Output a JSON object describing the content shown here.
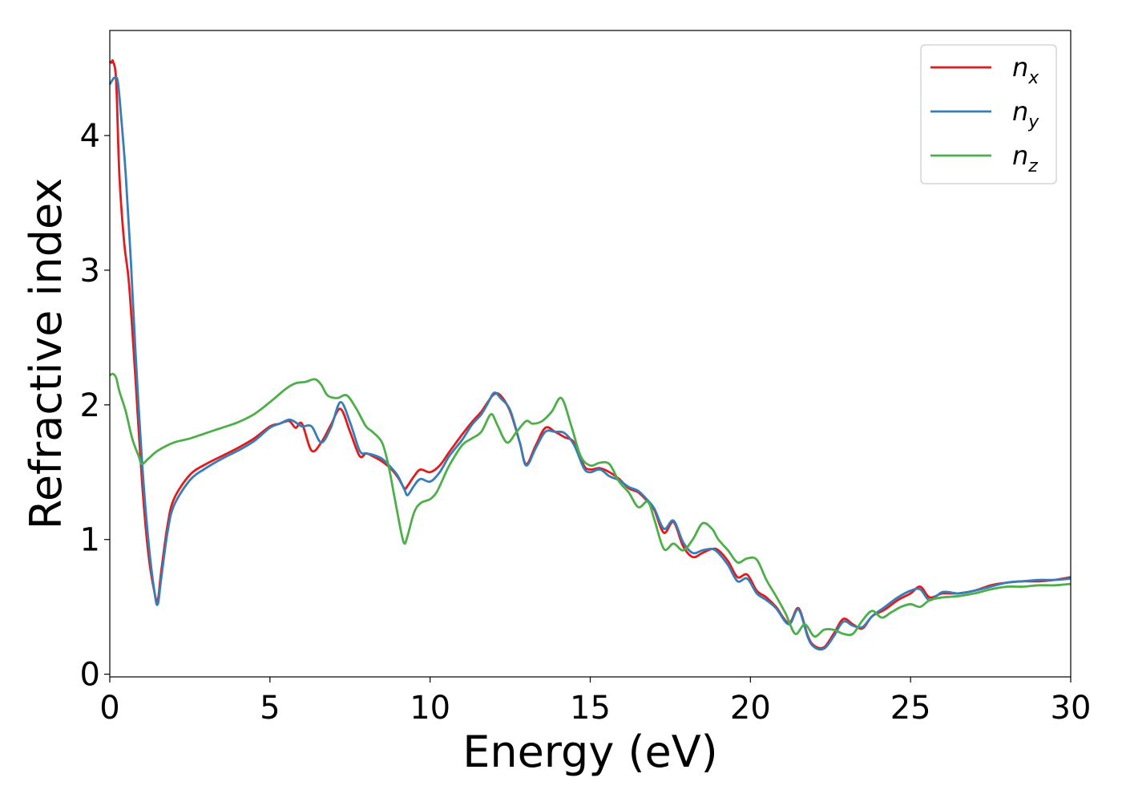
{
  "chart_data": {
    "type": "line",
    "xlabel": "Energy (eV)",
    "ylabel": "Refractive index",
    "xlim": [
      0,
      30
    ],
    "ylim": [
      -0.02,
      4.78
    ],
    "xticks": [
      {
        "v": 0,
        "label": "0"
      },
      {
        "v": 5,
        "label": "5"
      },
      {
        "v": 10,
        "label": "10"
      },
      {
        "v": 15,
        "label": "15"
      },
      {
        "v": 20,
        "label": "20"
      },
      {
        "v": 25,
        "label": "25"
      },
      {
        "v": 30,
        "label": "30"
      }
    ],
    "yticks": [
      {
        "v": 0,
        "label": "0"
      },
      {
        "v": 1,
        "label": "1"
      },
      {
        "v": 2,
        "label": "2"
      },
      {
        "v": 3,
        "label": "3"
      },
      {
        "v": 4,
        "label": "4"
      }
    ],
    "grid": false,
    "legend_position": "top-right",
    "series": [
      {
        "name": "n_x",
        "base": "n",
        "sub": "x",
        "color": "#e41a1c",
        "x": [
          0,
          0.05,
          0.1,
          0.2,
          0.3,
          0.45,
          0.6,
          0.8,
          1.0,
          1.2,
          1.4,
          1.5,
          1.6,
          1.8,
          2.0,
          2.5,
          3.0,
          3.5,
          4.0,
          4.5,
          5.0,
          5.3,
          5.6,
          5.8,
          6.0,
          6.3,
          6.6,
          6.9,
          7.2,
          7.5,
          7.8,
          8.0,
          8.2,
          8.5,
          8.8,
          9.0,
          9.2,
          9.3,
          9.5,
          9.7,
          10.0,
          10.3,
          10.6,
          11.0,
          11.3,
          11.6,
          11.8,
          12.0,
          12.2,
          12.5,
          12.8,
          13.0,
          13.3,
          13.6,
          13.9,
          14.2,
          14.5,
          14.8,
          15.0,
          15.3,
          15.6,
          15.9,
          16.2,
          16.5,
          16.8,
          17.0,
          17.3,
          17.6,
          17.9,
          18.2,
          18.5,
          18.8,
          19.0,
          19.3,
          19.6,
          19.9,
          20.2,
          20.5,
          20.8,
          21.2,
          21.5,
          21.8,
          22.0,
          22.3,
          22.6,
          22.9,
          23.2,
          23.5,
          23.8,
          24.2,
          24.6,
          25.0,
          25.3,
          25.6,
          26.0,
          26.5,
          27.0,
          27.5,
          28.0,
          28.5,
          29.0,
          29.5,
          30.0
        ],
        "y": [
          4.55,
          4.54,
          4.55,
          4.4,
          3.7,
          3.2,
          2.9,
          2.2,
          1.45,
          0.9,
          0.6,
          0.55,
          0.75,
          1.1,
          1.3,
          1.48,
          1.56,
          1.62,
          1.68,
          1.75,
          1.84,
          1.86,
          1.88,
          1.83,
          1.86,
          1.66,
          1.72,
          1.85,
          1.97,
          1.8,
          1.62,
          1.64,
          1.62,
          1.58,
          1.52,
          1.46,
          1.38,
          1.4,
          1.47,
          1.52,
          1.5,
          1.55,
          1.65,
          1.78,
          1.87,
          1.95,
          2.02,
          2.08,
          2.07,
          1.95,
          1.72,
          1.56,
          1.7,
          1.83,
          1.8,
          1.76,
          1.72,
          1.55,
          1.52,
          1.53,
          1.5,
          1.45,
          1.38,
          1.35,
          1.28,
          1.22,
          1.05,
          1.13,
          0.95,
          0.87,
          0.9,
          0.93,
          0.92,
          0.84,
          0.72,
          0.74,
          0.62,
          0.57,
          0.5,
          0.38,
          0.49,
          0.28,
          0.21,
          0.2,
          0.3,
          0.41,
          0.37,
          0.34,
          0.43,
          0.48,
          0.55,
          0.6,
          0.65,
          0.57,
          0.6,
          0.6,
          0.62,
          0.66,
          0.68,
          0.69,
          0.69,
          0.7,
          0.72
        ]
      },
      {
        "name": "n_y",
        "base": "n",
        "sub": "y",
        "color": "#377eb8",
        "x": [
          0,
          0.05,
          0.15,
          0.25,
          0.35,
          0.5,
          0.65,
          0.8,
          1.0,
          1.2,
          1.4,
          1.5,
          1.6,
          1.8,
          2.0,
          2.5,
          3.0,
          3.5,
          4.0,
          4.5,
          5.0,
          5.3,
          5.6,
          5.8,
          6.0,
          6.3,
          6.6,
          6.9,
          7.2,
          7.5,
          7.8,
          8.0,
          8.2,
          8.5,
          8.8,
          9.0,
          9.2,
          9.3,
          9.5,
          9.7,
          10.0,
          10.3,
          10.6,
          11.0,
          11.3,
          11.6,
          11.8,
          12.0,
          12.2,
          12.5,
          12.8,
          13.0,
          13.3,
          13.6,
          13.9,
          14.2,
          14.5,
          14.8,
          15.0,
          15.3,
          15.6,
          15.9,
          16.2,
          16.5,
          16.8,
          17.0,
          17.3,
          17.6,
          17.9,
          18.2,
          18.5,
          18.8,
          19.0,
          19.3,
          19.6,
          19.9,
          20.2,
          20.5,
          20.8,
          21.2,
          21.5,
          21.8,
          22.0,
          22.3,
          22.6,
          22.9,
          23.2,
          23.5,
          23.8,
          24.2,
          24.6,
          25.0,
          25.3,
          25.6,
          26.0,
          26.5,
          27.0,
          27.5,
          28.0,
          28.5,
          29.0,
          29.5,
          30.0
        ],
        "y": [
          4.38,
          4.4,
          4.43,
          4.4,
          4.15,
          3.7,
          3.1,
          2.4,
          1.6,
          1.0,
          0.6,
          0.52,
          0.7,
          1.05,
          1.25,
          1.44,
          1.53,
          1.6,
          1.66,
          1.73,
          1.83,
          1.86,
          1.89,
          1.87,
          1.84,
          1.84,
          1.72,
          1.83,
          2.02,
          1.87,
          1.66,
          1.64,
          1.63,
          1.6,
          1.53,
          1.47,
          1.37,
          1.33,
          1.4,
          1.45,
          1.43,
          1.5,
          1.62,
          1.74,
          1.85,
          1.93,
          2.01,
          2.09,
          2.05,
          1.96,
          1.72,
          1.55,
          1.68,
          1.8,
          1.8,
          1.79,
          1.7,
          1.53,
          1.5,
          1.52,
          1.47,
          1.44,
          1.39,
          1.36,
          1.29,
          1.23,
          1.08,
          1.14,
          0.98,
          0.9,
          0.92,
          0.93,
          0.9,
          0.81,
          0.69,
          0.71,
          0.6,
          0.55,
          0.49,
          0.37,
          0.48,
          0.27,
          0.2,
          0.19,
          0.28,
          0.39,
          0.36,
          0.35,
          0.43,
          0.5,
          0.57,
          0.62,
          0.63,
          0.55,
          0.61,
          0.6,
          0.62,
          0.65,
          0.68,
          0.69,
          0.7,
          0.7,
          0.71
        ]
      },
      {
        "name": "n_z",
        "base": "n",
        "sub": "z",
        "color": "#4daf4a",
        "x": [
          0,
          0.1,
          0.2,
          0.3,
          0.5,
          0.7,
          0.9,
          1.0,
          1.2,
          1.5,
          2.0,
          2.5,
          3.0,
          3.5,
          4.0,
          4.5,
          5.0,
          5.5,
          5.8,
          6.1,
          6.4,
          6.6,
          6.8,
          7.1,
          7.4,
          7.7,
          8.0,
          8.2,
          8.5,
          8.7,
          8.9,
          9.1,
          9.2,
          9.3,
          9.5,
          9.7,
          10.0,
          10.2,
          10.4,
          10.6,
          11.0,
          11.3,
          11.6,
          11.9,
          12.1,
          12.4,
          12.7,
          13.0,
          13.2,
          13.5,
          13.8,
          14.1,
          14.4,
          14.7,
          15.0,
          15.3,
          15.6,
          15.9,
          16.2,
          16.5,
          16.8,
          17.0,
          17.3,
          17.6,
          17.9,
          18.2,
          18.5,
          18.8,
          19.0,
          19.3,
          19.6,
          19.9,
          20.2,
          20.5,
          20.8,
          21.1,
          21.4,
          21.7,
          22.0,
          22.3,
          22.6,
          22.9,
          23.2,
          23.5,
          23.8,
          24.1,
          24.4,
          24.7,
          25.0,
          25.3,
          25.6,
          26.0,
          26.5,
          27.0,
          27.5,
          28.0,
          28.5,
          29.0,
          29.5,
          30.0
        ],
        "y": [
          2.22,
          2.23,
          2.2,
          2.1,
          1.95,
          1.75,
          1.62,
          1.56,
          1.6,
          1.66,
          1.72,
          1.75,
          1.79,
          1.83,
          1.87,
          1.93,
          2.02,
          2.12,
          2.16,
          2.17,
          2.19,
          2.15,
          2.07,
          2.05,
          2.07,
          1.97,
          1.84,
          1.8,
          1.72,
          1.55,
          1.3,
          1.05,
          0.97,
          1.03,
          1.2,
          1.27,
          1.3,
          1.35,
          1.45,
          1.55,
          1.7,
          1.75,
          1.8,
          1.93,
          1.85,
          1.72,
          1.8,
          1.88,
          1.86,
          1.88,
          1.95,
          2.05,
          1.85,
          1.62,
          1.55,
          1.57,
          1.56,
          1.43,
          1.35,
          1.24,
          1.28,
          1.15,
          0.93,
          0.97,
          0.92,
          1.0,
          1.12,
          1.08,
          1.0,
          0.92,
          0.83,
          0.86,
          0.85,
          0.7,
          0.58,
          0.45,
          0.3,
          0.37,
          0.28,
          0.33,
          0.33,
          0.3,
          0.3,
          0.4,
          0.47,
          0.42,
          0.46,
          0.5,
          0.52,
          0.5,
          0.55,
          0.57,
          0.58,
          0.6,
          0.63,
          0.65,
          0.65,
          0.66,
          0.66,
          0.67
        ]
      }
    ]
  }
}
